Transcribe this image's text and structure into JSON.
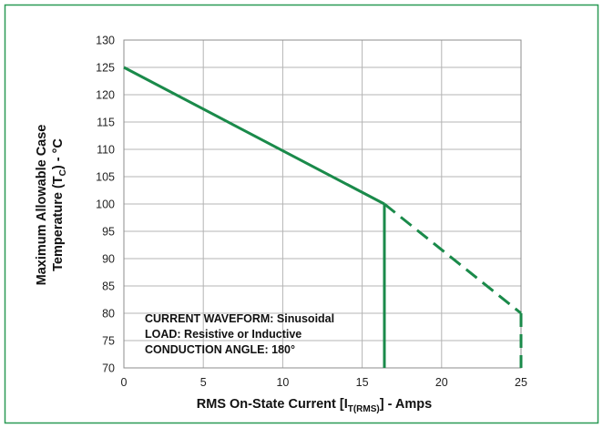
{
  "chart_data": {
    "type": "line",
    "title": "",
    "xlabel": {
      "prefix": "RMS On-State Current [I",
      "sub": "T(RMS)",
      "suffix": "] - Amps"
    },
    "ylabel": {
      "line1": "Maximum Allowable Case",
      "line2_prefix": "Temperature (T",
      "line2_sub": "C",
      "line2_suffix": ") - °C"
    },
    "xlim": [
      0,
      25
    ],
    "ylim": [
      70,
      130
    ],
    "x_ticks": [
      0,
      5,
      10,
      15,
      20,
      25
    ],
    "y_ticks": [
      70,
      75,
      80,
      85,
      90,
      95,
      100,
      105,
      110,
      115,
      120,
      125,
      130
    ],
    "grid": true,
    "series": [
      {
        "style": "solid",
        "x": [
          0,
          16.4
        ],
        "y": [
          125,
          100
        ]
      },
      {
        "style": "solid-vertical",
        "x": [
          16.4,
          16.4
        ],
        "y": [
          100,
          70
        ]
      },
      {
        "style": "dashed",
        "x": [
          16.4,
          25
        ],
        "y": [
          100,
          80
        ]
      },
      {
        "style": "dashed-vertical",
        "x": [
          25,
          25
        ],
        "y": [
          80,
          70
        ]
      }
    ],
    "annotation_lines": [
      "CURRENT WAVEFORM: Sinusoidal",
      "LOAD: Resistive or Inductive",
      "CONDUCTION ANGLE: 180°"
    ],
    "colors": {
      "line": "#1a8a4a",
      "frame": "#2a9a55",
      "grid": "#b4b4b4"
    }
  }
}
